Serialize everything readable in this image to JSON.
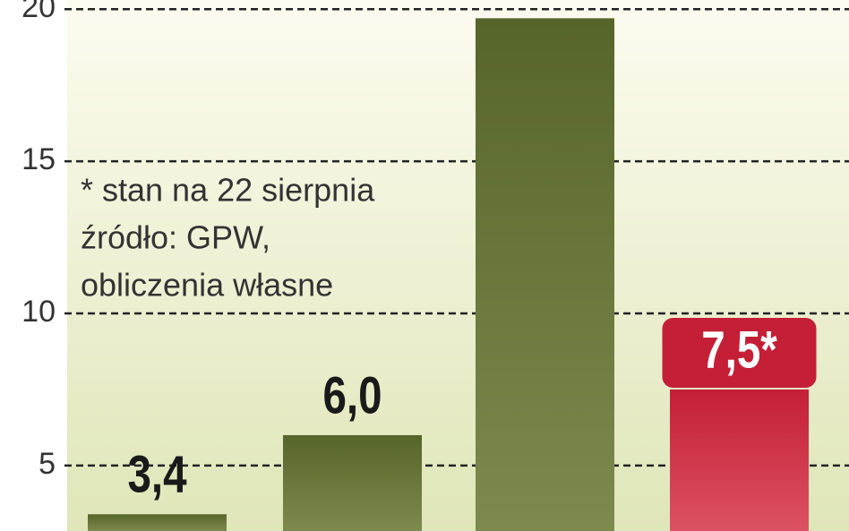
{
  "chart_data": {
    "type": "bar",
    "categories": [
      null,
      null,
      null,
      null
    ],
    "values": [
      3.4,
      6.0,
      19.7,
      7.5
    ],
    "value_labels": [
      "3,4",
      "6,0",
      null,
      "7,5*"
    ],
    "colors": [
      "#5b6a2c",
      "#5b6a2c",
      "#5b6a2c",
      "#c92a3f"
    ],
    "ylim": [
      2.85,
      20.3
    ],
    "yticks": [
      5,
      10,
      15,
      20
    ],
    "grid": true,
    "annotation": [
      "* stan na 22 sierpnia",
      "źródło: GPW,",
      "obliczenia własne"
    ]
  }
}
